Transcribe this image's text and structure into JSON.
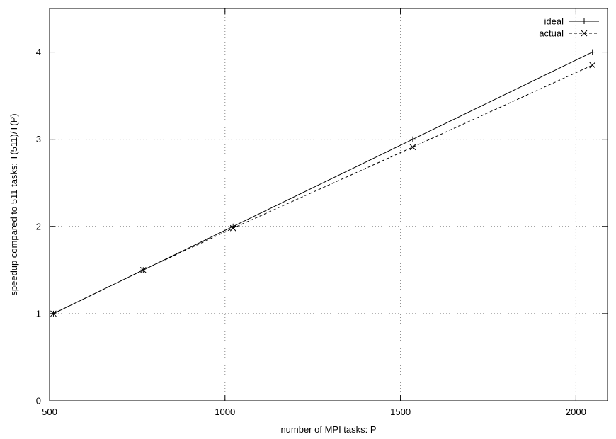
{
  "chart_data": {
    "type": "line",
    "title": "",
    "xlabel": "number of MPI tasks: P",
    "ylabel": "speedup compared to 511 tasks: T(511)/T(P)",
    "xlim": [
      500,
      2090
    ],
    "ylim": [
      0,
      4.5
    ],
    "x_ticks": [
      500,
      1000,
      1500,
      2000
    ],
    "y_ticks": [
      0,
      1,
      2,
      3,
      4
    ],
    "grid": true,
    "grid_style": "dotted",
    "legend_position": "top-right",
    "series": [
      {
        "name": "ideal",
        "line_style": "solid",
        "marker": "+",
        "color": "#000000",
        "x": [
          511,
          767,
          1023,
          1535,
          2047
        ],
        "y": [
          1.0,
          1.5,
          2.0,
          3.0,
          4.0
        ]
      },
      {
        "name": "actual",
        "line_style": "dashed",
        "marker": "x",
        "color": "#000000",
        "x": [
          511,
          767,
          1023,
          1535,
          2047
        ],
        "y": [
          1.0,
          1.5,
          1.98,
          2.91,
          3.85
        ]
      }
    ]
  }
}
